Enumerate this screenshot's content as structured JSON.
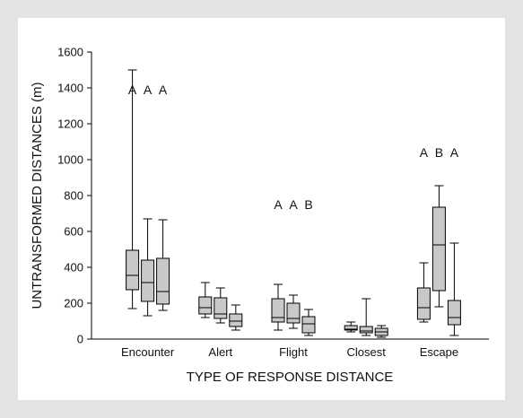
{
  "chart_data": {
    "type": "box",
    "title": "",
    "xlabel": "TYPE OF RESPONSE DISTANCE",
    "ylabel": "UNTRANSFORMED DISTANCES (m)",
    "ylim": [
      0,
      1600
    ],
    "yticks": [
      0,
      200,
      400,
      600,
      800,
      1000,
      1200,
      1400,
      1600
    ],
    "grid": false,
    "legend": "none",
    "box_color": "#c8c8c8",
    "categories": [
      "Encounter",
      "Alert",
      "Flight",
      "Closest",
      "Escape"
    ],
    "groups": [
      {
        "category": "Encounter",
        "letters": [
          "A",
          "A",
          "A"
        ],
        "letter_y": 1390,
        "boxes": [
          {
            "min": 170,
            "q1": 275,
            "median": 355,
            "q3": 495,
            "max": 1500
          },
          {
            "min": 130,
            "q1": 210,
            "median": 315,
            "q3": 440,
            "max": 670
          },
          {
            "min": 160,
            "q1": 195,
            "median": 265,
            "q3": 450,
            "max": 665
          }
        ]
      },
      {
        "category": "Alert",
        "letters": [],
        "letter_y": null,
        "boxes": [
          {
            "min": 120,
            "q1": 140,
            "median": 175,
            "q3": 235,
            "max": 315
          },
          {
            "min": 90,
            "q1": 115,
            "median": 140,
            "q3": 230,
            "max": 285
          },
          {
            "min": 50,
            "q1": 70,
            "median": 100,
            "q3": 140,
            "max": 190
          }
        ]
      },
      {
        "category": "Flight",
        "letters": [
          "A",
          "A",
          "B"
        ],
        "letter_y": 750,
        "boxes": [
          {
            "min": 50,
            "q1": 95,
            "median": 120,
            "q3": 225,
            "max": 305
          },
          {
            "min": 60,
            "q1": 90,
            "median": 115,
            "q3": 200,
            "max": 245
          },
          {
            "min": 20,
            "q1": 35,
            "median": 85,
            "q3": 125,
            "max": 165
          }
        ]
      },
      {
        "category": "Closest",
        "letters": [],
        "letter_y": null,
        "boxes": [
          {
            "min": 40,
            "q1": 50,
            "median": 55,
            "q3": 75,
            "max": 95
          },
          {
            "min": 20,
            "q1": 35,
            "median": 45,
            "q3": 70,
            "max": 225
          },
          {
            "min": 10,
            "q1": 20,
            "median": 40,
            "q3": 60,
            "max": 75
          }
        ]
      },
      {
        "category": "Escape",
        "letters": [
          "A",
          "B",
          "A"
        ],
        "letter_y": 1040,
        "boxes": [
          {
            "min": 95,
            "q1": 110,
            "median": 175,
            "q3": 285,
            "max": 425
          },
          {
            "min": 180,
            "q1": 270,
            "median": 525,
            "q3": 735,
            "max": 855
          },
          {
            "min": 20,
            "q1": 80,
            "median": 120,
            "q3": 215,
            "max": 535
          }
        ]
      }
    ]
  }
}
